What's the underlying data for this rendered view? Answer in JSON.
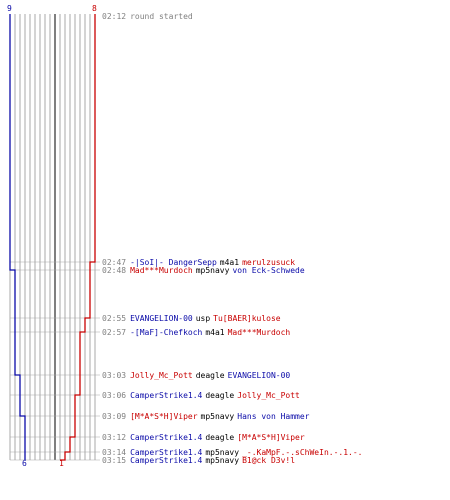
{
  "header": {
    "time": "02:12",
    "text": "round started"
  },
  "counts": {
    "blue_start": "9",
    "red_start": "8",
    "blue_end": "6",
    "red_end": "1"
  },
  "colors": {
    "blue": "#0a0aa8",
    "red": "#c80000",
    "grid": "#a8a8a8",
    "grid_dark": "#555555"
  },
  "events": [
    {
      "time": "02:47",
      "killer": "-|SoI|- DangerSepp",
      "killer_team": "blue",
      "weapon": "m4a1",
      "victim": "merulzusuck",
      "victim_team": "red"
    },
    {
      "time": "02:48",
      "killer": "Mad***Murdoch",
      "killer_team": "red",
      "weapon": "mp5navy",
      "victim": "von Eck-Schwede",
      "victim_team": "blue"
    },
    {
      "time": "02:55",
      "killer": "EVANGELION-00",
      "killer_team": "blue",
      "weapon": "usp",
      "victim": "Tu[BAER]kulose",
      "victim_team": "red"
    },
    {
      "time": "02:57",
      "killer": "-[MaF]-Chefkoch",
      "killer_team": "blue",
      "weapon": "m4a1",
      "victim": "Mad***Murdoch",
      "victim_team": "red"
    },
    {
      "time": "03:03",
      "killer": "Jolly_Mc_Pott",
      "killer_team": "red",
      "weapon": "deagle",
      "victim": "EVANGELION-00",
      "victim_team": "blue"
    },
    {
      "time": "03:06",
      "killer": "CamperStrike1.4",
      "killer_team": "blue",
      "weapon": "deagle",
      "victim": "Jolly_Mc_Pott",
      "victim_team": "red"
    },
    {
      "time": "03:09",
      "killer": "[M*A*S*H]Viper",
      "killer_team": "red",
      "weapon": "mp5navy",
      "victim": "Hans von Hammer",
      "victim_team": "blue"
    },
    {
      "time": "03:12",
      "killer": "CamperStrike1.4",
      "killer_team": "blue",
      "weapon": "deagle",
      "victim": "[M*A*S*H]Viper",
      "victim_team": "red"
    },
    {
      "time": "03:14",
      "killer": "CamperStrike1.4",
      "killer_team": "blue",
      "weapon": "mp5navy",
      "victim": "_-.KaMpF.-.sChWeIn.-.1.-.",
      "victim_team": "red"
    },
    {
      "time": "03:15",
      "killer": "CamperStrike1.4",
      "killer_team": "blue",
      "weapon": "mp5navy",
      "victim": "B1@ck D3v!l",
      "victim_team": "red"
    }
  ]
}
